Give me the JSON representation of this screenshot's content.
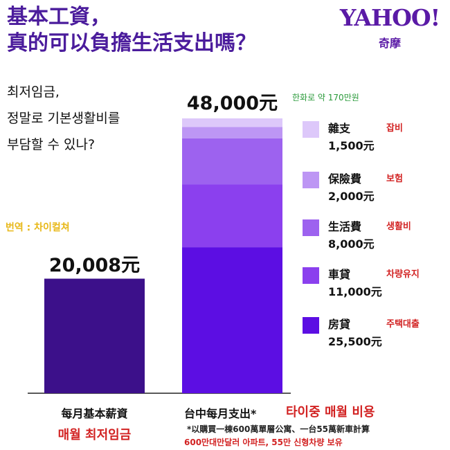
{
  "header": {
    "title_line1": "基本工資，",
    "title_line2": "真的可以負擔生活支出嗎？",
    "subtitle_lines": [
      "최저임금,",
      "정말로 기본생활비를",
      "부담할 수 있나?"
    ],
    "translator_credit": "번역 : 차이컬쳐"
  },
  "logo": {
    "main": "YAHOO!",
    "sub": "奇摩"
  },
  "chart_data": {
    "type": "bar",
    "categories": [
      "每月基本薪資",
      "台中每月支出*"
    ],
    "category_labels_ko": [
      "매월 최저임금",
      "타이중 매월 비용"
    ],
    "bar_totals": [
      20008,
      48000
    ],
    "bar_total_labels": [
      "20,008元",
      "48,000元"
    ],
    "total_note_ko": "한화로 약 170만원",
    "series": [
      {
        "name": "房貸",
        "name_ko": "주택대출",
        "value_label": "25,500元",
        "color": "#5c0ee3",
        "values": [
          null,
          25500
        ]
      },
      {
        "name": "車貸",
        "name_ko": "차량유지",
        "value_label": "11,000元",
        "color": "#8b40ee",
        "values": [
          null,
          11000
        ]
      },
      {
        "name": "生活費",
        "name_ko": "생활비",
        "value_label": "8,000元",
        "color": "#9d62ef",
        "values": [
          null,
          8000
        ]
      },
      {
        "name": "保險費",
        "name_ko": "보험",
        "value_label": "2,000元",
        "color": "#bd96f4",
        "values": [
          null,
          2000
        ]
      },
      {
        "name": "雜支",
        "name_ko": "잡비",
        "value_label": "1,500元",
        "color": "#ddc8fa",
        "values": [
          null,
          1500
        ]
      }
    ],
    "single_bar_color": "#3c108a",
    "footnote": "*以購買一棟600萬單層公寓、一台55萬新車計算",
    "footnote_ko": "600만대만달러 아파트, 55만 신형차량 보유",
    "ylim": [
      0,
      48000
    ]
  }
}
